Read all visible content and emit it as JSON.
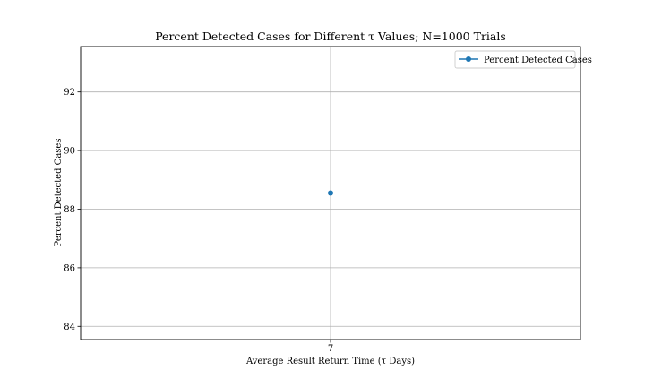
{
  "chart_data": {
    "type": "line",
    "title": "Percent Detected Cases for Different τ Values; N=1000 Trials",
    "xlabel": "Average Result Return Time (τ Days)",
    "ylabel": "Percent Detected Cases",
    "categories": [
      "7"
    ],
    "series": [
      {
        "name": "Percent Detected Cases",
        "values": [
          88.55
        ],
        "color": "#1f77b4",
        "marker": "circle"
      }
    ],
    "ylim": [
      83.55,
      93.55
    ],
    "yticks": [
      84,
      86,
      88,
      90,
      92
    ],
    "grid": true,
    "legend_position": "top-right"
  }
}
